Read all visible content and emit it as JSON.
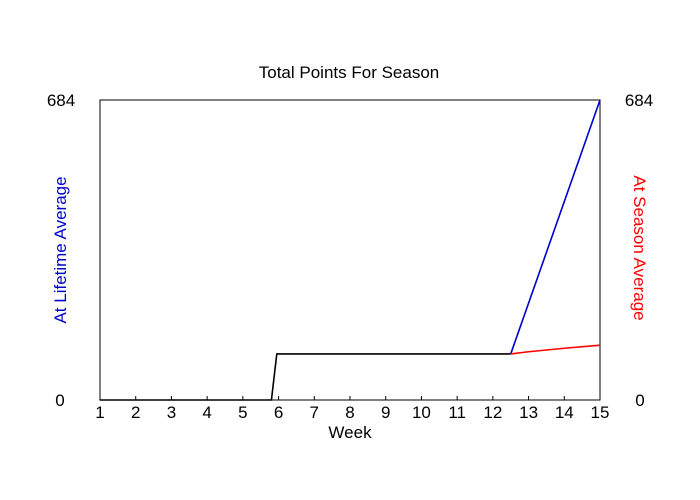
{
  "chart_data": {
    "type": "line",
    "title": "Total Points For Season",
    "xlabel": "Week",
    "ylabel_left": "At Lifetime Average",
    "ylabel_right": "At Season Average",
    "xlim": [
      1,
      15
    ],
    "ylim": [
      0,
      684
    ],
    "x_ticks": [
      "1",
      "2",
      "3",
      "4",
      "5",
      "6",
      "7",
      "8",
      "9",
      "10",
      "11",
      "12",
      "13",
      "14",
      "15"
    ],
    "y_ticks_left": [
      "0",
      "684"
    ],
    "y_ticks_right": [
      "0",
      "684"
    ],
    "grid": false,
    "series": [
      {
        "color": "#000000",
        "points": [
          [
            1,
            0
          ],
          [
            5.8,
            0
          ],
          [
            5.95,
            105
          ],
          [
            12.5,
            105
          ]
        ]
      },
      {
        "color": "#0000cc",
        "points": [
          [
            12.5,
            105
          ],
          [
            15,
            684
          ]
        ]
      },
      {
        "color": "#ff0000",
        "points": [
          [
            12.5,
            105
          ],
          [
            13,
            110
          ],
          [
            14,
            118
          ],
          [
            15,
            125
          ]
        ]
      }
    ]
  },
  "colors": {
    "left_axis_label": "#0000cc",
    "right_axis_label": "#ff0000"
  }
}
